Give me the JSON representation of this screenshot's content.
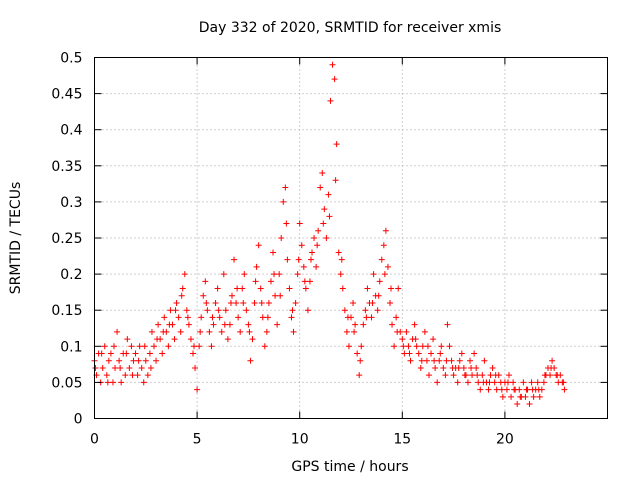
{
  "chart_data": {
    "type": "scatter",
    "title": "Day 332 of 2020, SRMTID for receiver xmis",
    "xlabel": "GPS time / hours",
    "ylabel": "SRMTID / TECUs",
    "xlim": [
      0,
      25
    ],
    "ylim": [
      0,
      0.5
    ],
    "xticks": [
      0,
      5,
      10,
      15,
      20
    ],
    "xtick_labels": [
      "0",
      "5",
      "10",
      "15",
      "20"
    ],
    "yticks": [
      0,
      0.05,
      0.1,
      0.15,
      0.2,
      0.25,
      0.3,
      0.35,
      0.4,
      0.45,
      0.5
    ],
    "ytick_labels": [
      "0",
      "0.05",
      "0.1",
      "0.15",
      "0.2",
      "0.25",
      "0.3",
      "0.35",
      "0.4",
      "0.45",
      "0.5"
    ],
    "grid": true,
    "marker": "+",
    "color": "#ff0000",
    "series": [
      {
        "name": "SRMTID",
        "points": [
          [
            0.0,
            0.08
          ],
          [
            0.1,
            0.06
          ],
          [
            0.2,
            0.09
          ],
          [
            0.3,
            0.05
          ],
          [
            0.4,
            0.07
          ],
          [
            0.5,
            0.1
          ],
          [
            0.6,
            0.06
          ],
          [
            0.7,
            0.08
          ],
          [
            0.8,
            0.09
          ],
          [
            0.9,
            0.05
          ],
          [
            1.0,
            0.07
          ],
          [
            1.1,
            0.12
          ],
          [
            1.2,
            0.08
          ],
          [
            1.3,
            0.05
          ],
          [
            1.4,
            0.09
          ],
          [
            1.5,
            0.06
          ],
          [
            1.6,
            0.11
          ],
          [
            1.7,
            0.07
          ],
          [
            1.8,
            0.1
          ],
          [
            1.9,
            0.08
          ],
          [
            2.0,
            0.09
          ],
          [
            2.1,
            0.06
          ],
          [
            2.2,
            0.1
          ],
          [
            2.3,
            0.07
          ],
          [
            2.4,
            0.05
          ],
          [
            2.5,
            0.08
          ],
          [
            2.6,
            0.06
          ],
          [
            2.7,
            0.09
          ],
          [
            2.8,
            0.12
          ],
          [
            2.9,
            0.1
          ],
          [
            3.0,
            0.08
          ],
          [
            3.1,
            0.13
          ],
          [
            3.2,
            0.11
          ],
          [
            3.3,
            0.09
          ],
          [
            3.4,
            0.14
          ],
          [
            3.5,
            0.12
          ],
          [
            3.6,
            0.1
          ],
          [
            3.7,
            0.15
          ],
          [
            3.8,
            0.13
          ],
          [
            3.9,
            0.11
          ],
          [
            4.0,
            0.16
          ],
          [
            4.1,
            0.14
          ],
          [
            4.2,
            0.12
          ],
          [
            4.3,
            0.18
          ],
          [
            4.4,
            0.2
          ],
          [
            4.5,
            0.15
          ],
          [
            4.6,
            0.13
          ],
          [
            4.7,
            0.11
          ],
          [
            4.8,
            0.09
          ],
          [
            4.9,
            0.07
          ],
          [
            5.0,
            0.04
          ],
          [
            5.1,
            0.1
          ],
          [
            5.2,
            0.14
          ],
          [
            5.3,
            0.17
          ],
          [
            5.4,
            0.19
          ],
          [
            5.5,
            0.15
          ],
          [
            5.6,
            0.12
          ],
          [
            5.7,
            0.1
          ],
          [
            5.8,
            0.13
          ],
          [
            5.9,
            0.16
          ],
          [
            6.0,
            0.18
          ],
          [
            6.1,
            0.14
          ],
          [
            6.2,
            0.12
          ],
          [
            6.3,
            0.2
          ],
          [
            6.4,
            0.15
          ],
          [
            6.5,
            0.11
          ],
          [
            6.6,
            0.13
          ],
          [
            6.7,
            0.17
          ],
          [
            6.8,
            0.22
          ],
          [
            6.9,
            0.16
          ],
          [
            7.0,
            0.14
          ],
          [
            7.1,
            0.12
          ],
          [
            7.2,
            0.18
          ],
          [
            7.3,
            0.2
          ],
          [
            7.4,
            0.15
          ],
          [
            7.5,
            0.13
          ],
          [
            7.6,
            0.08
          ],
          [
            7.7,
            0.11
          ],
          [
            7.8,
            0.16
          ],
          [
            7.9,
            0.21
          ],
          [
            8.0,
            0.24
          ],
          [
            8.1,
            0.18
          ],
          [
            8.2,
            0.14
          ],
          [
            8.3,
            0.1
          ],
          [
            8.4,
            0.12
          ],
          [
            8.5,
            0.16
          ],
          [
            8.6,
            0.19
          ],
          [
            8.7,
            0.23
          ],
          [
            8.8,
            0.17
          ],
          [
            8.9,
            0.13
          ],
          [
            9.0,
            0.2
          ],
          [
            9.1,
            0.25
          ],
          [
            9.2,
            0.3
          ],
          [
            9.3,
            0.32
          ],
          [
            9.4,
            0.22
          ],
          [
            9.5,
            0.18
          ],
          [
            9.6,
            0.14
          ],
          [
            9.7,
            0.12
          ],
          [
            9.8,
            0.16
          ],
          [
            9.9,
            0.2
          ],
          [
            10.0,
            0.27
          ],
          [
            10.1,
            0.24
          ],
          [
            10.2,
            0.21
          ],
          [
            10.3,
            0.18
          ],
          [
            10.4,
            0.15
          ],
          [
            10.5,
            0.19
          ],
          [
            10.6,
            0.23
          ],
          [
            10.7,
            0.25
          ],
          [
            10.8,
            0.21
          ],
          [
            10.9,
            0.26
          ],
          [
            11.0,
            0.32
          ],
          [
            11.1,
            0.34
          ],
          [
            11.2,
            0.29
          ],
          [
            11.3,
            0.25
          ],
          [
            11.4,
            0.31
          ],
          [
            11.5,
            0.44
          ],
          [
            11.6,
            0.49
          ],
          [
            11.7,
            0.47
          ],
          [
            11.8,
            0.38
          ],
          [
            11.9,
            0.23
          ],
          [
            12.0,
            0.2
          ],
          [
            12.1,
            0.18
          ],
          [
            12.2,
            0.15
          ],
          [
            12.3,
            0.12
          ],
          [
            12.4,
            0.1
          ],
          [
            12.5,
            0.14
          ],
          [
            12.6,
            0.16
          ],
          [
            12.7,
            0.13
          ],
          [
            12.8,
            0.09
          ],
          [
            12.9,
            0.06
          ],
          [
            13.0,
            0.1
          ],
          [
            13.1,
            0.13
          ],
          [
            13.2,
            0.15
          ],
          [
            13.3,
            0.18
          ],
          [
            13.4,
            0.16
          ],
          [
            13.5,
            0.14
          ],
          [
            13.6,
            0.2
          ],
          [
            13.7,
            0.17
          ],
          [
            13.8,
            0.15
          ],
          [
            13.9,
            0.19
          ],
          [
            14.0,
            0.22
          ],
          [
            14.1,
            0.24
          ],
          [
            14.2,
            0.26
          ],
          [
            14.3,
            0.21
          ],
          [
            14.4,
            0.16
          ],
          [
            14.5,
            0.13
          ],
          [
            14.6,
            0.1
          ],
          [
            14.7,
            0.14
          ],
          [
            14.8,
            0.18
          ],
          [
            14.9,
            0.12
          ],
          [
            15.0,
            0.11
          ],
          [
            15.1,
            0.09
          ],
          [
            15.2,
            0.12
          ],
          [
            15.3,
            0.1
          ],
          [
            15.4,
            0.08
          ],
          [
            15.5,
            0.11
          ],
          [
            15.6,
            0.13
          ],
          [
            15.7,
            0.1
          ],
          [
            15.8,
            0.09
          ],
          [
            15.9,
            0.07
          ],
          [
            16.0,
            0.1
          ],
          [
            16.1,
            0.12
          ],
          [
            16.2,
            0.08
          ],
          [
            16.3,
            0.06
          ],
          [
            16.4,
            0.09
          ],
          [
            16.5,
            0.11
          ],
          [
            16.6,
            0.07
          ],
          [
            16.7,
            0.05
          ],
          [
            16.8,
            0.08
          ],
          [
            16.9,
            0.1
          ],
          [
            17.0,
            0.07
          ],
          [
            17.1,
            0.06
          ],
          [
            17.2,
            0.13
          ],
          [
            17.3,
            0.1
          ],
          [
            17.4,
            0.08
          ],
          [
            17.5,
            0.06
          ],
          [
            17.6,
            0.07
          ],
          [
            17.7,
            0.05
          ],
          [
            17.8,
            0.08
          ],
          [
            17.9,
            0.09
          ],
          [
            18.0,
            0.07
          ],
          [
            18.1,
            0.06
          ],
          [
            18.2,
            0.05
          ],
          [
            18.3,
            0.08
          ],
          [
            18.4,
            0.06
          ],
          [
            18.5,
            0.09
          ],
          [
            18.6,
            0.07
          ],
          [
            18.7,
            0.05
          ],
          [
            18.8,
            0.04
          ],
          [
            18.9,
            0.06
          ],
          [
            19.0,
            0.08
          ],
          [
            19.1,
            0.05
          ],
          [
            19.2,
            0.04
          ],
          [
            19.3,
            0.06
          ],
          [
            19.4,
            0.07
          ],
          [
            19.5,
            0.05
          ],
          [
            19.6,
            0.04
          ],
          [
            19.7,
            0.06
          ],
          [
            19.8,
            0.05
          ],
          [
            19.9,
            0.03
          ],
          [
            20.0,
            0.05
          ],
          [
            20.1,
            0.04
          ],
          [
            20.2,
            0.06
          ],
          [
            20.3,
            0.03
          ],
          [
            20.4,
            0.05
          ],
          [
            20.5,
            0.04
          ],
          [
            20.6,
            0.02
          ],
          [
            20.7,
            0.04
          ],
          [
            20.8,
            0.03
          ],
          [
            20.9,
            0.05
          ],
          [
            21.0,
            0.03
          ],
          [
            21.1,
            0.04
          ],
          [
            21.2,
            0.02
          ],
          [
            21.3,
            0.05
          ],
          [
            21.4,
            0.03
          ],
          [
            21.5,
            0.04
          ],
          [
            21.6,
            0.05
          ],
          [
            21.7,
            0.03
          ],
          [
            21.8,
            0.04
          ],
          [
            21.9,
            0.05
          ],
          [
            22.0,
            0.06
          ],
          [
            22.1,
            0.07
          ],
          [
            22.2,
            0.06
          ],
          [
            22.3,
            0.08
          ],
          [
            22.4,
            0.07
          ],
          [
            22.5,
            0.06
          ],
          [
            22.6,
            0.05
          ],
          [
            22.7,
            0.06
          ],
          [
            22.8,
            0.05
          ],
          [
            22.9,
            0.04
          ],
          [
            0.05,
            0.07
          ],
          [
            0.35,
            0.09
          ],
          [
            0.65,
            0.05
          ],
          [
            0.95,
            0.1
          ],
          [
            1.25,
            0.07
          ],
          [
            1.55,
            0.09
          ],
          [
            1.85,
            0.06
          ],
          [
            2.15,
            0.08
          ],
          [
            2.45,
            0.1
          ],
          [
            2.75,
            0.07
          ],
          [
            3.05,
            0.11
          ],
          [
            3.35,
            0.12
          ],
          [
            3.65,
            0.13
          ],
          [
            3.95,
            0.15
          ],
          [
            4.25,
            0.17
          ],
          [
            4.55,
            0.14
          ],
          [
            4.85,
            0.1
          ],
          [
            5.15,
            0.12
          ],
          [
            5.45,
            0.16
          ],
          [
            5.75,
            0.14
          ],
          [
            6.05,
            0.15
          ],
          [
            6.35,
            0.13
          ],
          [
            6.65,
            0.16
          ],
          [
            6.95,
            0.18
          ],
          [
            7.25,
            0.16
          ],
          [
            7.55,
            0.12
          ],
          [
            7.85,
            0.19
          ],
          [
            8.15,
            0.16
          ],
          [
            8.45,
            0.14
          ],
          [
            8.75,
            0.2
          ],
          [
            9.05,
            0.17
          ],
          [
            9.35,
            0.27
          ],
          [
            9.65,
            0.15
          ],
          [
            9.95,
            0.22
          ],
          [
            10.25,
            0.19
          ],
          [
            10.55,
            0.22
          ],
          [
            10.85,
            0.24
          ],
          [
            11.15,
            0.27
          ],
          [
            11.45,
            0.28
          ],
          [
            11.75,
            0.33
          ],
          [
            12.05,
            0.22
          ],
          [
            12.35,
            0.14
          ],
          [
            12.65,
            0.12
          ],
          [
            12.95,
            0.08
          ],
          [
            13.25,
            0.14
          ],
          [
            13.55,
            0.16
          ],
          [
            13.85,
            0.17
          ],
          [
            14.15,
            0.2
          ],
          [
            14.45,
            0.18
          ],
          [
            14.75,
            0.12
          ],
          [
            15.05,
            0.1
          ],
          [
            15.35,
            0.09
          ],
          [
            15.65,
            0.11
          ],
          [
            15.95,
            0.08
          ],
          [
            16.25,
            0.1
          ],
          [
            16.55,
            0.08
          ],
          [
            16.85,
            0.09
          ],
          [
            17.15,
            0.08
          ],
          [
            17.45,
            0.07
          ],
          [
            17.75,
            0.07
          ],
          [
            18.05,
            0.06
          ],
          [
            18.35,
            0.07
          ],
          [
            18.65,
            0.06
          ],
          [
            18.95,
            0.05
          ],
          [
            19.25,
            0.05
          ],
          [
            19.55,
            0.06
          ],
          [
            19.85,
            0.04
          ],
          [
            20.15,
            0.05
          ],
          [
            20.45,
            0.04
          ],
          [
            20.75,
            0.03
          ],
          [
            21.05,
            0.04
          ],
          [
            21.35,
            0.04
          ],
          [
            21.65,
            0.04
          ],
          [
            21.95,
            0.06
          ],
          [
            22.25,
            0.07
          ],
          [
            22.55,
            0.06
          ],
          [
            22.85,
            0.05
          ]
        ]
      }
    ]
  }
}
